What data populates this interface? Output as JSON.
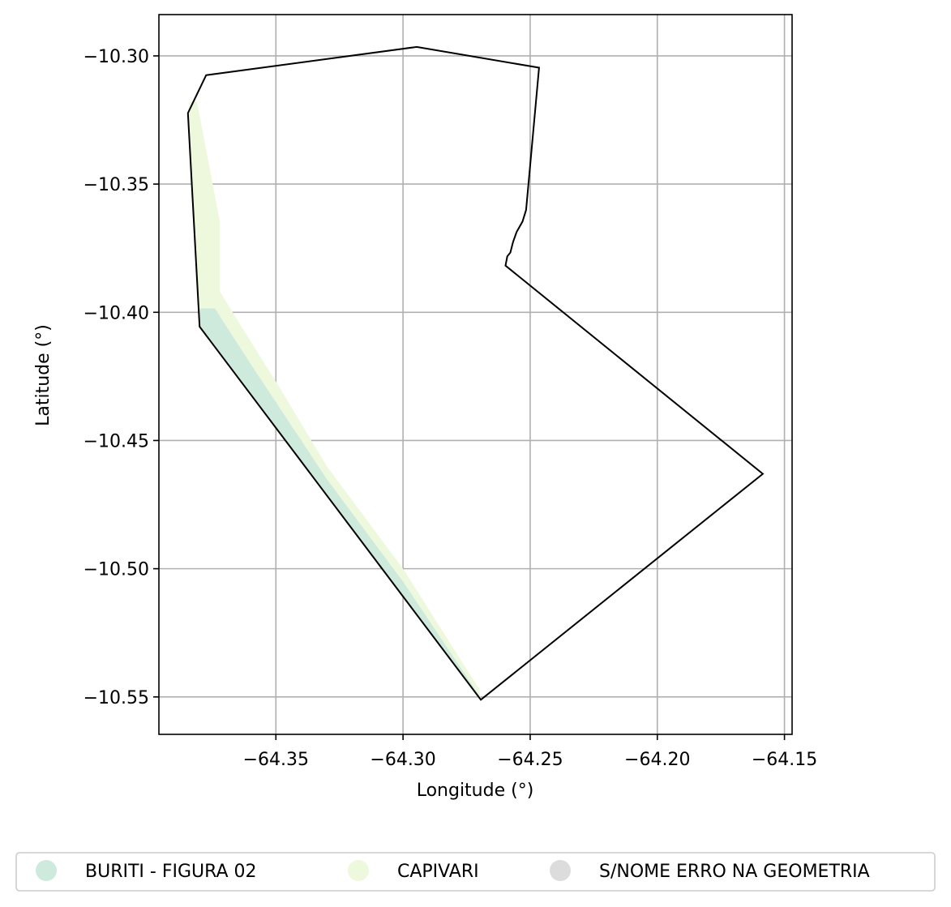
{
  "chart_data": {
    "type": "map",
    "xlabel": "Longitude (°)",
    "ylabel": "Latitude (°)",
    "xlim": [
      -64.396,
      -64.147
    ],
    "ylim": [
      -10.5646,
      -10.2839
    ],
    "x_ticks": [
      {
        "value": -64.35,
        "label": "−64.35"
      },
      {
        "value": -64.3,
        "label": "−64.30"
      },
      {
        "value": -64.25,
        "label": "−64.25"
      },
      {
        "value": -64.2,
        "label": "−64.20"
      },
      {
        "value": -64.15,
        "label": "−64.15"
      }
    ],
    "y_ticks": [
      {
        "value": -10.3,
        "label": "−10.30"
      },
      {
        "value": -10.35,
        "label": "−10.35"
      },
      {
        "value": -10.4,
        "label": "−10.40"
      },
      {
        "value": -10.45,
        "label": "−10.45"
      },
      {
        "value": -10.5,
        "label": "−10.50"
      },
      {
        "value": -10.55,
        "label": "−10.55"
      }
    ],
    "grid": true,
    "boundary": {
      "stroke": "#000000",
      "coords": [
        [
          -64.3846,
          -10.3223
        ],
        [
          -64.3774,
          -10.3075
        ],
        [
          -64.2946,
          -10.2965
        ],
        [
          -64.2465,
          -10.3046
        ],
        [
          -64.2516,
          -10.3601
        ],
        [
          -64.253,
          -10.3646
        ],
        [
          -64.2553,
          -10.3686
        ],
        [
          -64.2567,
          -10.3725
        ],
        [
          -64.2578,
          -10.3767
        ],
        [
          -64.259,
          -10.3782
        ],
        [
          -64.2597,
          -10.3818
        ],
        [
          -64.1585,
          -10.463
        ],
        [
          -64.2694,
          -10.5511
        ],
        [
          -64.38,
          -10.4056
        ],
        [
          -64.3846,
          -10.3223
        ]
      ]
    },
    "areas": [
      {
        "name": "BURITI - FIGURA 02",
        "color": "#cdeadd",
        "coords": [
          [
            -64.38,
            -10.4056
          ],
          [
            -64.38,
            -10.3985
          ],
          [
            -64.374,
            -10.3985
          ],
          [
            -64.36,
            -10.42
          ],
          [
            -64.33,
            -10.465
          ],
          [
            -64.3,
            -10.505
          ],
          [
            -64.27,
            -10.5495
          ],
          [
            -64.2694,
            -10.5511
          ],
          [
            -64.38,
            -10.4056
          ]
        ]
      },
      {
        "name": "CAPIVARI",
        "color": "#eef8dc",
        "coords": [
          [
            -64.384,
            -10.318
          ],
          [
            -64.381,
            -10.318
          ],
          [
            -64.372,
            -10.365
          ],
          [
            -64.372,
            -10.392
          ],
          [
            -64.362,
            -10.408
          ],
          [
            -64.35,
            -10.427
          ],
          [
            -64.33,
            -10.46
          ],
          [
            -64.3,
            -10.5
          ],
          [
            -64.27,
            -10.547
          ],
          [
            -64.2694,
            -10.5511
          ],
          [
            -64.3,
            -10.505
          ],
          [
            -64.33,
            -10.465
          ],
          [
            -64.36,
            -10.42
          ],
          [
            -64.374,
            -10.3985
          ],
          [
            -64.38,
            -10.3985
          ],
          [
            -64.38,
            -10.4056
          ],
          [
            -64.3846,
            -10.3223
          ]
        ]
      },
      {
        "name": "S/NOME ERRO NA GEOMETRIA",
        "color": "#dcdcdc",
        "coords": []
      }
    ],
    "legend": {
      "placement": "bottom",
      "entries": [
        {
          "label": "BURITI - FIGURA 02",
          "color": "#cdeadd"
        },
        {
          "label": "CAPIVARI",
          "color": "#eef8dc"
        },
        {
          "label": "S/NOME ERRO NA GEOMETRIA",
          "color": "#dcdcdc"
        }
      ]
    }
  }
}
